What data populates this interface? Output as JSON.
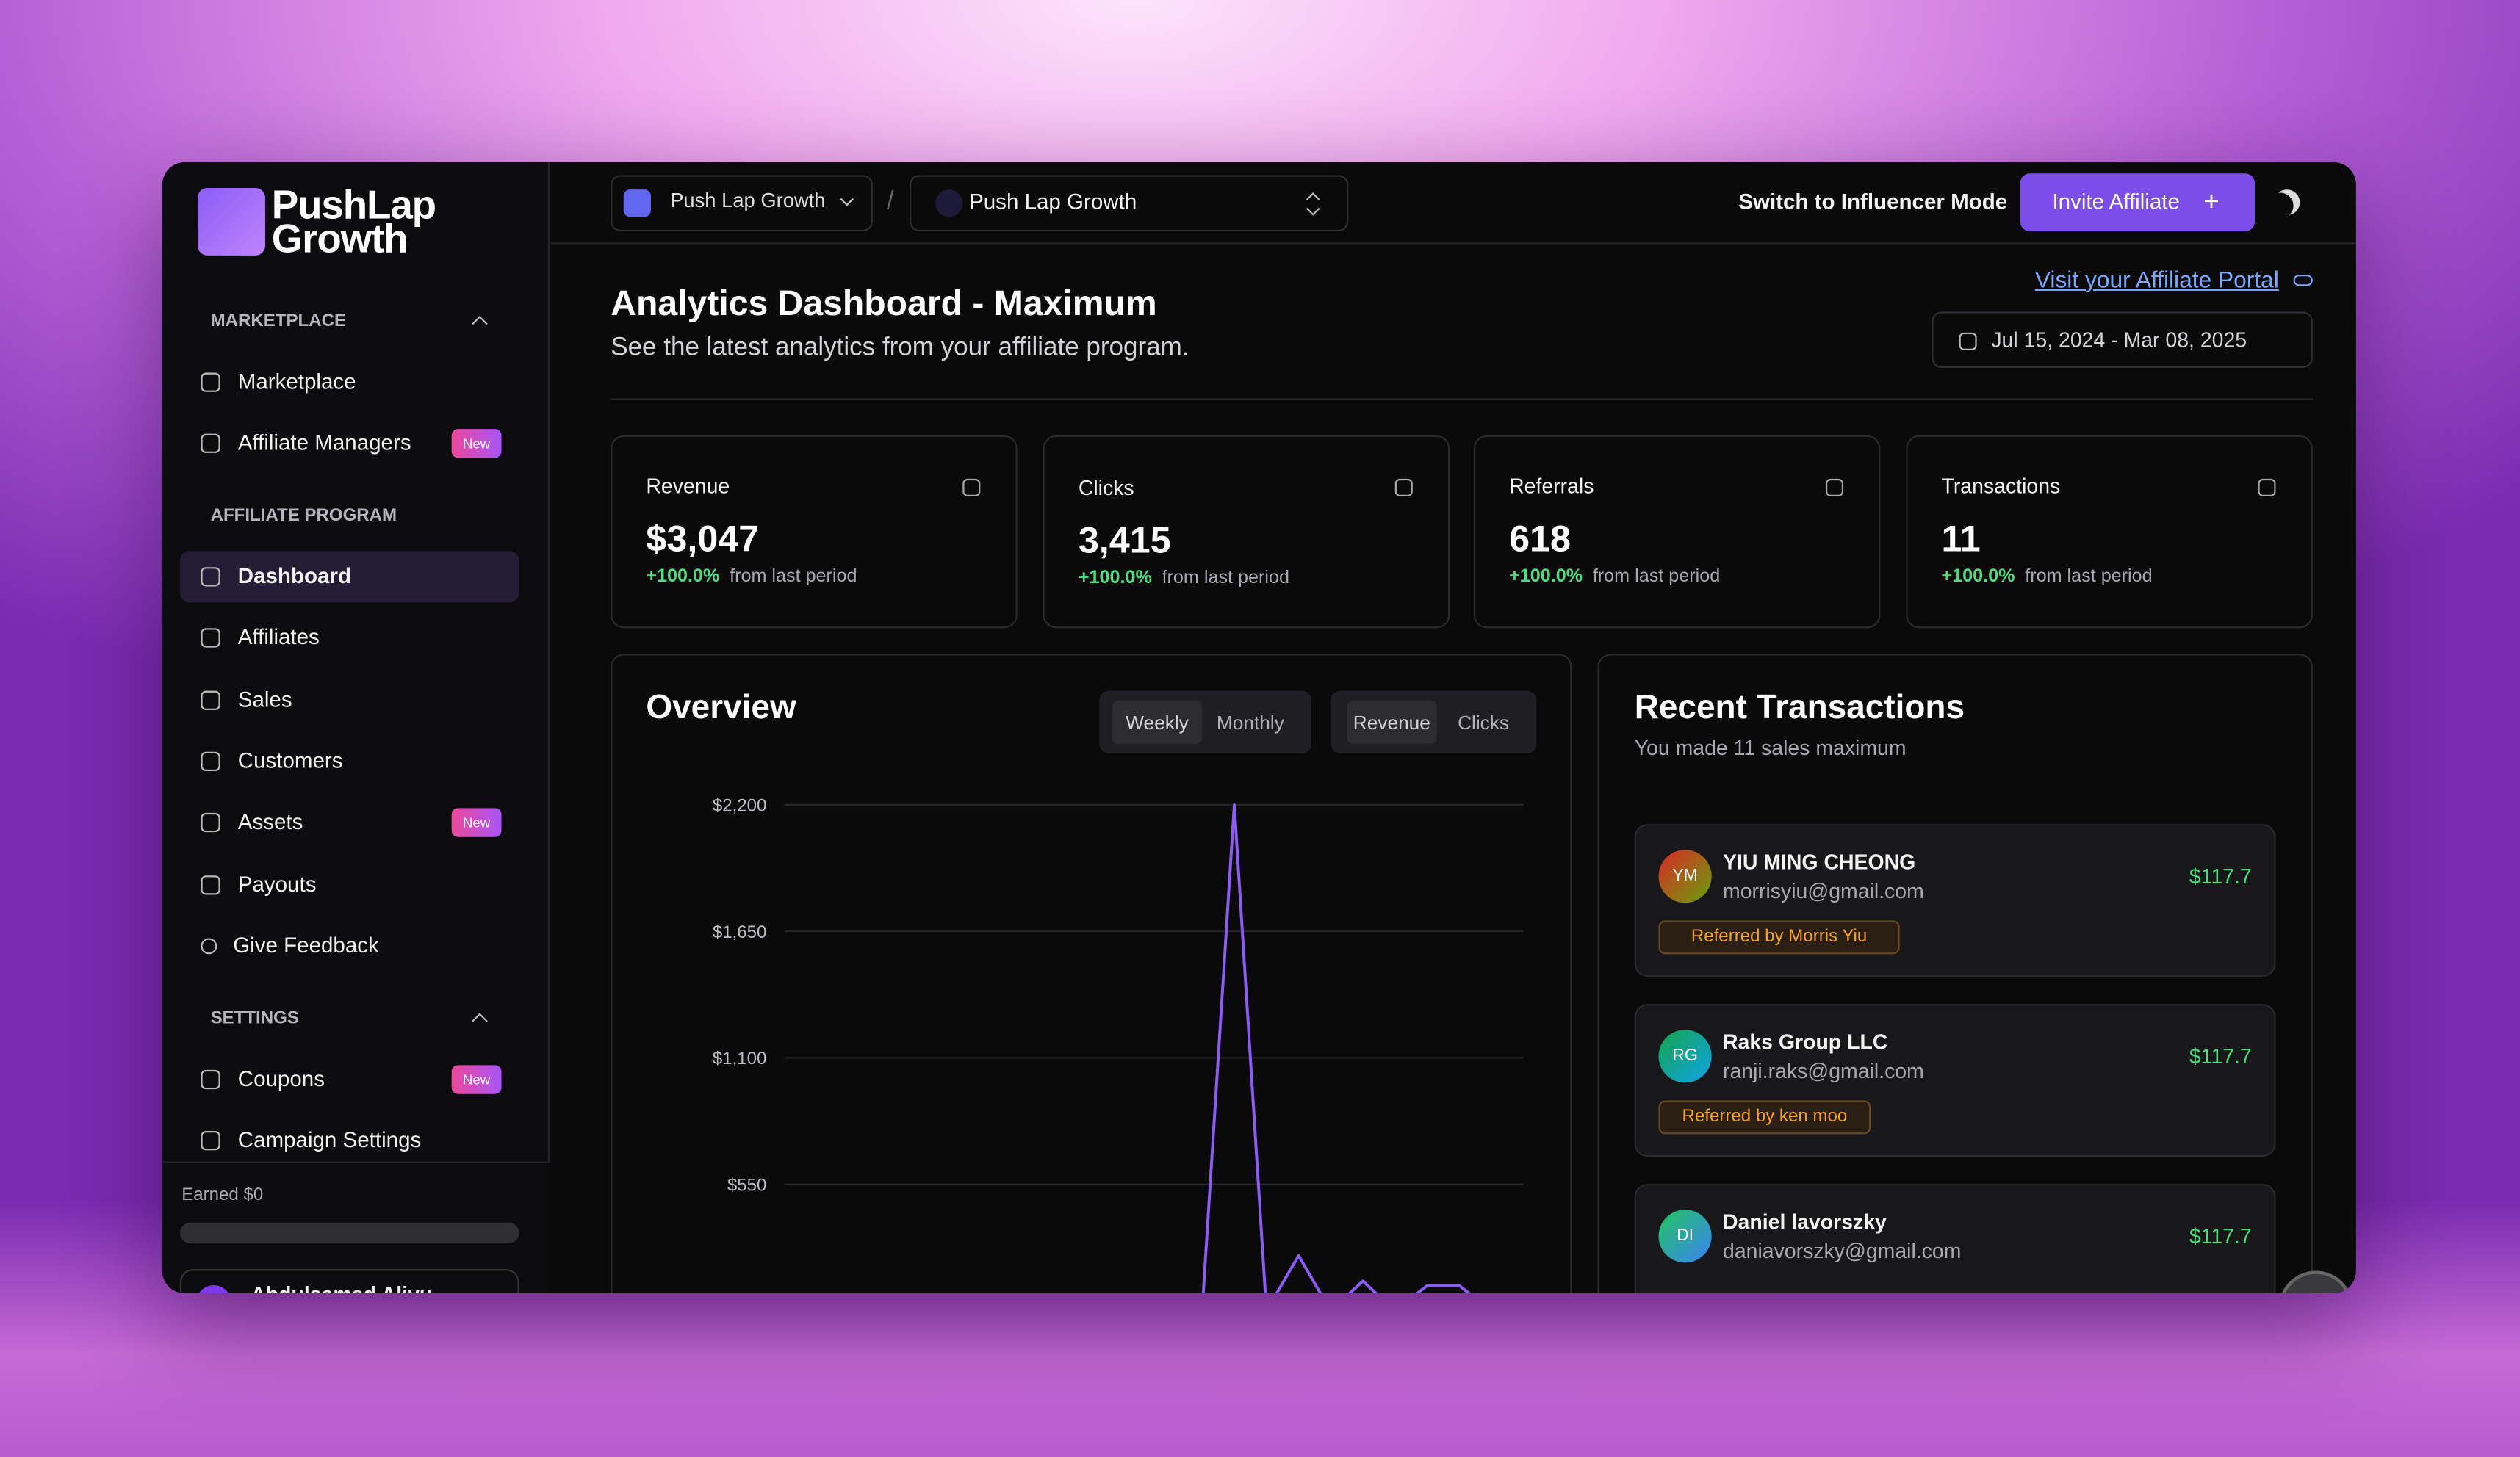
{
  "brand": {
    "line1": "PushLap",
    "line2": "Growth"
  },
  "sidebar": {
    "sections": [
      {
        "title": "MARKETPLACE",
        "items": [
          {
            "label": "Marketplace"
          },
          {
            "label": "Affiliate Managers",
            "badge": "New"
          }
        ]
      },
      {
        "title": "AFFILIATE PROGRAM",
        "items": [
          {
            "label": "Dashboard"
          },
          {
            "label": "Affiliates"
          },
          {
            "label": "Sales"
          },
          {
            "label": "Customers"
          },
          {
            "label": "Assets",
            "badge": "New"
          },
          {
            "label": "Payouts"
          },
          {
            "label": "Give Feedback"
          }
        ]
      },
      {
        "title": "SETTINGS",
        "items": [
          {
            "label": "Coupons",
            "badge": "New"
          },
          {
            "label": "Campaign Settings"
          }
        ]
      }
    ],
    "earned": "Earned $0",
    "user": "Abdulsamad Aliyu"
  },
  "topbar": {
    "workspace": "Push Lap Growth",
    "program": "Push Lap Growth",
    "switch": "Switch to Influencer Mode",
    "invite": "Invite Affiliate"
  },
  "header": {
    "title": "Analytics Dashboard - Maximum",
    "subtitle": "See the latest analytics from your affiliate program.",
    "portal_link": "Visit your Affiliate Portal",
    "date_range": "Jul 15, 2024 - Mar 08, 2025"
  },
  "stats": [
    {
      "label": "Revenue",
      "value": "$3,047",
      "change": "+100.0%",
      "note": "from last period"
    },
    {
      "label": "Clicks",
      "value": "3,415",
      "change": "+100.0%",
      "note": "from last period"
    },
    {
      "label": "Referrals",
      "value": "618",
      "change": "+100.0%",
      "note": "from last period"
    },
    {
      "label": "Transactions",
      "value": "11",
      "change": "+100.0%",
      "note": "from last period"
    }
  ],
  "overview": {
    "title": "Overview",
    "period_tabs": [
      "Weekly",
      "Monthly"
    ],
    "metric_tabs": [
      "Revenue",
      "Clicks"
    ],
    "chart": {
      "type": "line",
      "categories": [
        null,
        null,
        null,
        null,
        null,
        null,
        null,
        null,
        null,
        null,
        null,
        null,
        null,
        null,
        null,
        null,
        null,
        null,
        null,
        null,
        null,
        null,
        null,
        null
      ],
      "values": [
        0,
        0,
        0,
        0,
        0,
        0,
        0,
        0,
        0,
        0,
        0,
        0,
        0,
        0,
        2200,
        0,
        240,
        0,
        130,
        0,
        110,
        110,
        0,
        0
      ],
      "color": "#8b5cf6",
      "ylim": [
        0,
        2200
      ],
      "yticks": [
        {
          "value": 550,
          "label": "$550"
        },
        {
          "value": 1100,
          "label": "$1,100"
        },
        {
          "value": 1650,
          "label": "$1,650"
        },
        {
          "value": 2200,
          "label": "$2,200"
        }
      ],
      "grid": true
    }
  },
  "transactions": {
    "title": "Recent Transactions",
    "subtitle": "You made 11 sales maximum",
    "items": [
      {
        "initials": "YM",
        "name": "YIU MING CHEONG",
        "email": "morrisyiu@gmail.com",
        "amount": "$117.7",
        "referrer": "Referred by Morris Yiu"
      },
      {
        "initials": "RG",
        "name": "Raks Group LLC",
        "email": "ranji.raks@gmail.com",
        "amount": "$117.7",
        "referrer": "Referred by ken moo"
      },
      {
        "initials": "DI",
        "name": "Daniel lavorszky",
        "email": "daniavorszky@gmail.com",
        "amount": "$117.7"
      }
    ]
  }
}
